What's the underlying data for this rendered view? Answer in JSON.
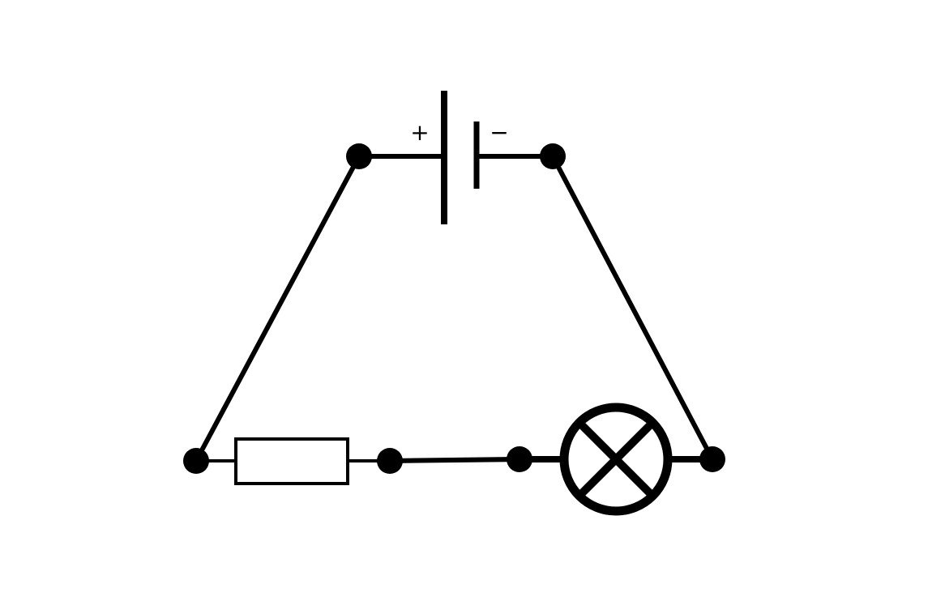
{
  "diagram": {
    "battery": {
      "positive_label": "+",
      "negative_label": "−"
    },
    "components": [
      {
        "id": "battery",
        "icon": "battery-icon"
      },
      {
        "id": "resistor",
        "icon": "resistor-icon"
      },
      {
        "id": "lamp",
        "icon": "lamp-icon"
      }
    ],
    "nodes": [
      "battery-positive-node",
      "battery-negative-node",
      "bottom-left-node",
      "resistor-right-node",
      "lamp-left-node",
      "bottom-right-node"
    ],
    "colors": {
      "line": "#000000",
      "background": "#ffffff"
    }
  }
}
